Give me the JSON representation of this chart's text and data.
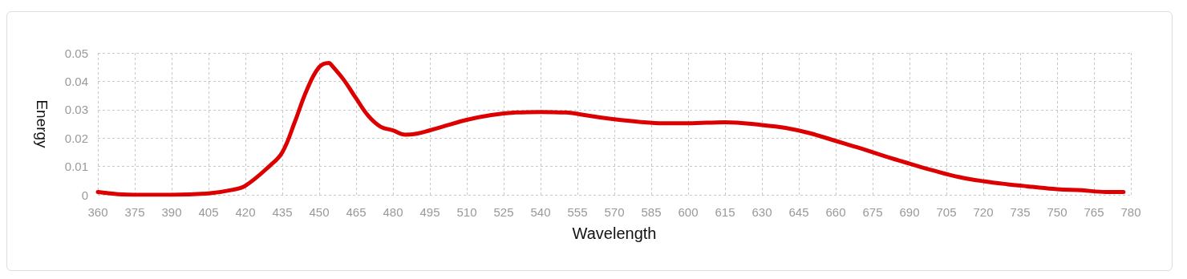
{
  "chart_data": {
    "type": "line",
    "xlabel": "Wavelength",
    "ylabel": "Energy",
    "x": [
      360,
      375,
      390,
      405,
      415,
      420,
      430,
      435,
      440,
      445,
      450,
      454,
      455,
      460,
      465,
      470,
      475,
      480,
      485,
      490,
      500,
      510,
      520,
      530,
      540,
      550,
      560,
      570,
      580,
      590,
      600,
      615,
      630,
      640,
      650,
      660,
      670,
      680,
      690,
      700,
      710,
      720,
      730,
      740,
      750,
      760,
      770,
      777
    ],
    "series": [
      {
        "color": "#dd0000",
        "values": [
          0.001,
          0,
          0,
          0.0005,
          0.0018,
          0.0032,
          0.0103,
          0.015,
          0.0255,
          0.037,
          0.045,
          0.0465,
          0.0457,
          0.0405,
          0.034,
          0.0278,
          0.024,
          0.0227,
          0.0212,
          0.0216,
          0.024,
          0.0264,
          0.0281,
          0.029,
          0.0292,
          0.029,
          0.0278,
          0.0266,
          0.0257,
          0.0252,
          0.0252,
          0.0256,
          0.0246,
          0.0235,
          0.0216,
          0.019,
          0.0164,
          0.0136,
          0.011,
          0.0085,
          0.0063,
          0.0048,
          0.0037,
          0.0028,
          0.002,
          0.0016,
          0.001,
          0.001
        ]
      }
    ],
    "xlim": [
      360,
      780
    ],
    "xticks": [
      360,
      375,
      390,
      405,
      420,
      435,
      450,
      465,
      480,
      495,
      510,
      525,
      540,
      555,
      570,
      585,
      600,
      615,
      630,
      645,
      660,
      675,
      690,
      705,
      720,
      735,
      750,
      765,
      780
    ],
    "ylim": [
      0,
      0.05
    ],
    "yticks": [
      0,
      0.01,
      0.02,
      0.03,
      0.04,
      0.05
    ],
    "grid": true,
    "marker": "none",
    "line_style": "solid"
  }
}
